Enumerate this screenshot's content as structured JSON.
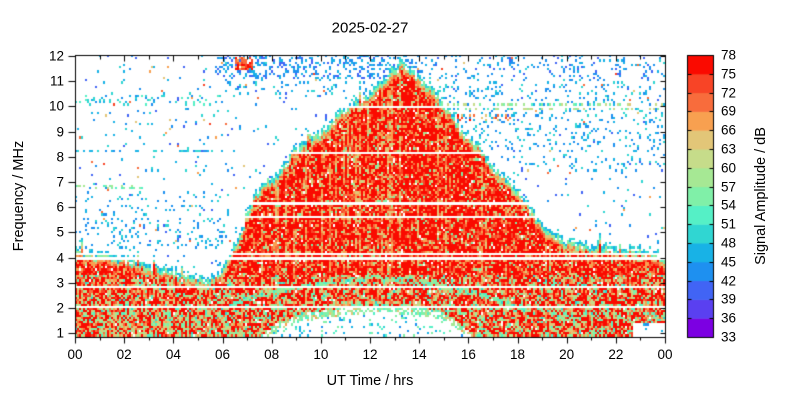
{
  "title": "2025-02-27",
  "chart_data": {
    "type": "heatmap",
    "title": "2025-02-27",
    "xlabel": "UT Time / hrs",
    "ylabel": "Frequency / MHz",
    "colorbar_label": "Signal Amplitude / dB",
    "x_range_hours": [
      0,
      24
    ],
    "x_tick_hours": [
      0,
      2,
      4,
      6,
      8,
      10,
      12,
      14,
      16,
      18,
      20,
      22,
      24
    ],
    "x_tick_labels": [
      "00",
      "02",
      "04",
      "06",
      "08",
      "10",
      "12",
      "14",
      "16",
      "18",
      "20",
      "22",
      "00"
    ],
    "x_minor_tick_step_hours": 1,
    "y_range_mhz": [
      0.85,
      12.04
    ],
    "y_ticks_mhz": [
      1,
      2,
      3,
      4,
      5,
      6,
      7,
      8,
      9,
      10,
      11,
      12
    ],
    "colorbar_range_db": [
      33,
      78
    ],
    "colorbar_ticks_db": [
      33,
      36,
      39,
      42,
      45,
      48,
      51,
      54,
      57,
      60,
      63,
      66,
      69,
      72,
      75,
      78
    ],
    "palette": [
      "#7C00E2",
      "#5A40F0",
      "#4164F5",
      "#1E90F0",
      "#18B2E6",
      "#30D6D2",
      "#55F0C6",
      "#80F0A8",
      "#A6E894",
      "#C6DC8A",
      "#E2C678",
      "#F8A050",
      "#F86C3C",
      "#F84426",
      "#FA0A00"
    ],
    "background_color": "#FFFFFF",
    "grid": false,
    "signal_envelope_mhz": [
      [
        0,
        4.1
      ],
      [
        0.7,
        3.95
      ],
      [
        1.5,
        3.8
      ],
      [
        2.4,
        3.7
      ],
      [
        3,
        3.5
      ],
      [
        3.7,
        3.3
      ],
      [
        4.3,
        3.15
      ],
      [
        5,
        3.0
      ],
      [
        5.45,
        2.95
      ],
      [
        5.75,
        3.05
      ],
      [
        6.05,
        3.45
      ],
      [
        6.35,
        3.95
      ],
      [
        6.65,
        4.45
      ],
      [
        7,
        5.5
      ],
      [
        7.3,
        6.3
      ],
      [
        7.7,
        6.8
      ],
      [
        8.1,
        7.0
      ],
      [
        8.5,
        7.4
      ],
      [
        8.9,
        8.1
      ],
      [
        9.3,
        8.3
      ],
      [
        9.8,
        8.6
      ],
      [
        10.2,
        8.9
      ],
      [
        10.6,
        9.4
      ],
      [
        11,
        9.7
      ],
      [
        11.4,
        10.0
      ],
      [
        11.9,
        10.2
      ],
      [
        12.3,
        10.6
      ],
      [
        12.7,
        11.0
      ],
      [
        13.0,
        11.3
      ],
      [
        13.3,
        11.6
      ],
      [
        13.6,
        11.3
      ],
      [
        14,
        11.0
      ],
      [
        14.4,
        10.6
      ],
      [
        14.7,
        10.3
      ],
      [
        15.2,
        9.7
      ],
      [
        15.7,
        8.9
      ],
      [
        16.1,
        8.5
      ],
      [
        16.5,
        8.2
      ],
      [
        16.8,
        7.6
      ],
      [
        17.1,
        7.3
      ],
      [
        17.5,
        7.0
      ],
      [
        17.9,
        6.5
      ],
      [
        18.4,
        6.0
      ],
      [
        18.9,
        5.2
      ],
      [
        19.4,
        4.7
      ],
      [
        20,
        4.4
      ],
      [
        20.6,
        4.3
      ],
      [
        21.5,
        4.25
      ],
      [
        22.5,
        4.15
      ],
      [
        23.3,
        4.05
      ],
      [
        24,
        3.85
      ]
    ],
    "interference_gap_lines_mhz": [
      10.0,
      8.15,
      6.15,
      5.65,
      4.12,
      3.97,
      2.87,
      2.02
    ],
    "daytime_absorption_upper_mhz": [
      [
        7.6,
        0.9
      ],
      [
        8.3,
        1.45
      ],
      [
        9.2,
        1.75
      ],
      [
        10.5,
        1.95
      ],
      [
        12,
        2.1
      ],
      [
        13.5,
        2.05
      ],
      [
        14.5,
        1.95
      ],
      [
        15.2,
        1.7
      ],
      [
        15.8,
        1.25
      ],
      [
        16.1,
        0.9
      ]
    ],
    "e_layer_arcs": [
      {
        "points": [
          [
            5.9,
            1.95
          ],
          [
            7,
            2.35
          ],
          [
            8,
            2.6
          ],
          [
            9,
            2.8
          ],
          [
            10,
            2.95
          ],
          [
            11,
            3.1
          ],
          [
            12,
            3.2
          ],
          [
            13,
            3.15
          ],
          [
            14,
            3.05
          ],
          [
            15,
            2.9
          ],
          [
            16,
            2.65
          ],
          [
            17,
            2.4
          ],
          [
            17.8,
            2.1
          ],
          [
            18.4,
            1.85
          ]
        ],
        "halfwidth_mhz": 0.09,
        "density": 0.7,
        "db": [
          50,
          60
        ]
      },
      {
        "points": [
          [
            7.5,
            1.55
          ],
          [
            9,
            1.85
          ],
          [
            11,
            2.05
          ],
          [
            12.5,
            2.1
          ],
          [
            14,
            2.0
          ],
          [
            15.5,
            1.8
          ],
          [
            16.5,
            1.6
          ]
        ],
        "halfwidth_mhz": 0.07,
        "density": 0.35,
        "db": [
          50,
          58
        ]
      }
    ],
    "noise_bands": [
      {
        "t": [
          5.7,
          14
        ],
        "f": [
          11.05,
          12.04
        ],
        "density": 0.3,
        "db": [
          40,
          48
        ],
        "over_signal": false
      },
      {
        "t": [
          14,
          24
        ],
        "f": [
          11.05,
          12.04
        ],
        "density": 0.1,
        "db": [
          40,
          48
        ],
        "over_signal": false
      },
      {
        "t": [
          5.7,
          24
        ],
        "f": [
          10.35,
          11.05
        ],
        "density": 0.1,
        "db": [
          42,
          50
        ],
        "over_signal": false
      },
      {
        "t": [
          12,
          24
        ],
        "f": [
          8.45,
          10.35
        ],
        "density": 0.1,
        "db": [
          42,
          50
        ],
        "over_signal": false
      },
      {
        "t": [
          0,
          6.3
        ],
        "f": [
          4.35,
          6.6
        ],
        "density": 0.09,
        "db": [
          42,
          50
        ],
        "over_signal": false
      },
      {
        "t": [
          0,
          6
        ],
        "f": [
          9.95,
          10.5
        ],
        "density": 0.14,
        "db": [
          42,
          54
        ],
        "over_signal": false
      },
      {
        "t": [
          0,
          6.5
        ],
        "f": [
          8.08,
          8.3
        ],
        "density": 0.3,
        "db": [
          44,
          50
        ],
        "over_signal": false
      },
      {
        "t": [
          16,
          24
        ],
        "f": [
          7.3,
          8.45
        ],
        "density": 0.06,
        "db": [
          42,
          50
        ],
        "over_signal": false
      },
      {
        "t": [
          14.4,
          17.9
        ],
        "f": [
          9.45,
          9.68
        ],
        "density": 0.55,
        "db": [
          63,
          76
        ],
        "over_signal": true,
        "dashed": true
      },
      {
        "t": [
          13,
          24
        ],
        "f": [
          9.86,
          10.12
        ],
        "density": 0.3,
        "db": [
          52,
          64
        ],
        "over_signal": false
      }
    ],
    "hotspots": [
      {
        "t": [
          6.5,
          7.25
        ],
        "f": [
          11.45,
          11.95
        ],
        "density": 0.75,
        "db": [
          66,
          78
        ]
      },
      {
        "t": [
          0,
          2.8
        ],
        "f": [
          6.68,
          6.92
        ],
        "density": 0.35,
        "db": [
          50,
          61
        ]
      }
    ],
    "clear_patches": [
      {
        "t": [
          22.7,
          24
        ],
        "f": [
          0.85,
          1.38
        ],
        "density": 0.06,
        "db": [
          40,
          48
        ]
      }
    ],
    "background_speckle": {
      "density": 0.025,
      "db": [
        40,
        50
      ],
      "warm_density": 0.004,
      "warm_db": [
        63,
        74
      ]
    }
  }
}
